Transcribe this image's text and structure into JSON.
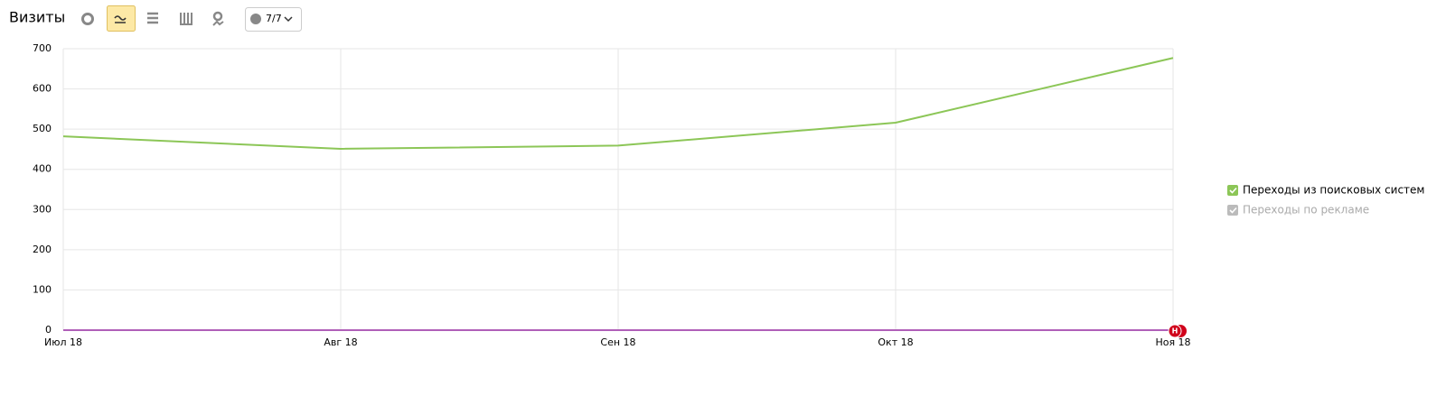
{
  "toolbar": {
    "comments": "7/7"
  },
  "chart_data": {
    "type": "line",
    "title": "Визиты",
    "categories": [
      "Июл 18",
      "Авг 18",
      "Сен 18",
      "Окт 18",
      "Ноя 18"
    ],
    "series": [
      {
        "name": "Переходы из поисковых систем",
        "color": "#8cc657",
        "values": [
          482,
          451,
          459,
          516,
          677
        ]
      },
      {
        "name": "Переходы по рекламе",
        "color": "#b05fb8",
        "values": [
          0,
          0,
          0,
          0,
          0
        ]
      }
    ],
    "ylim": [
      0,
      700
    ],
    "yticks": [
      0,
      100,
      200,
      300,
      400,
      500,
      600,
      700
    ],
    "grid": true,
    "annotation": "Н",
    "legend": "right"
  }
}
